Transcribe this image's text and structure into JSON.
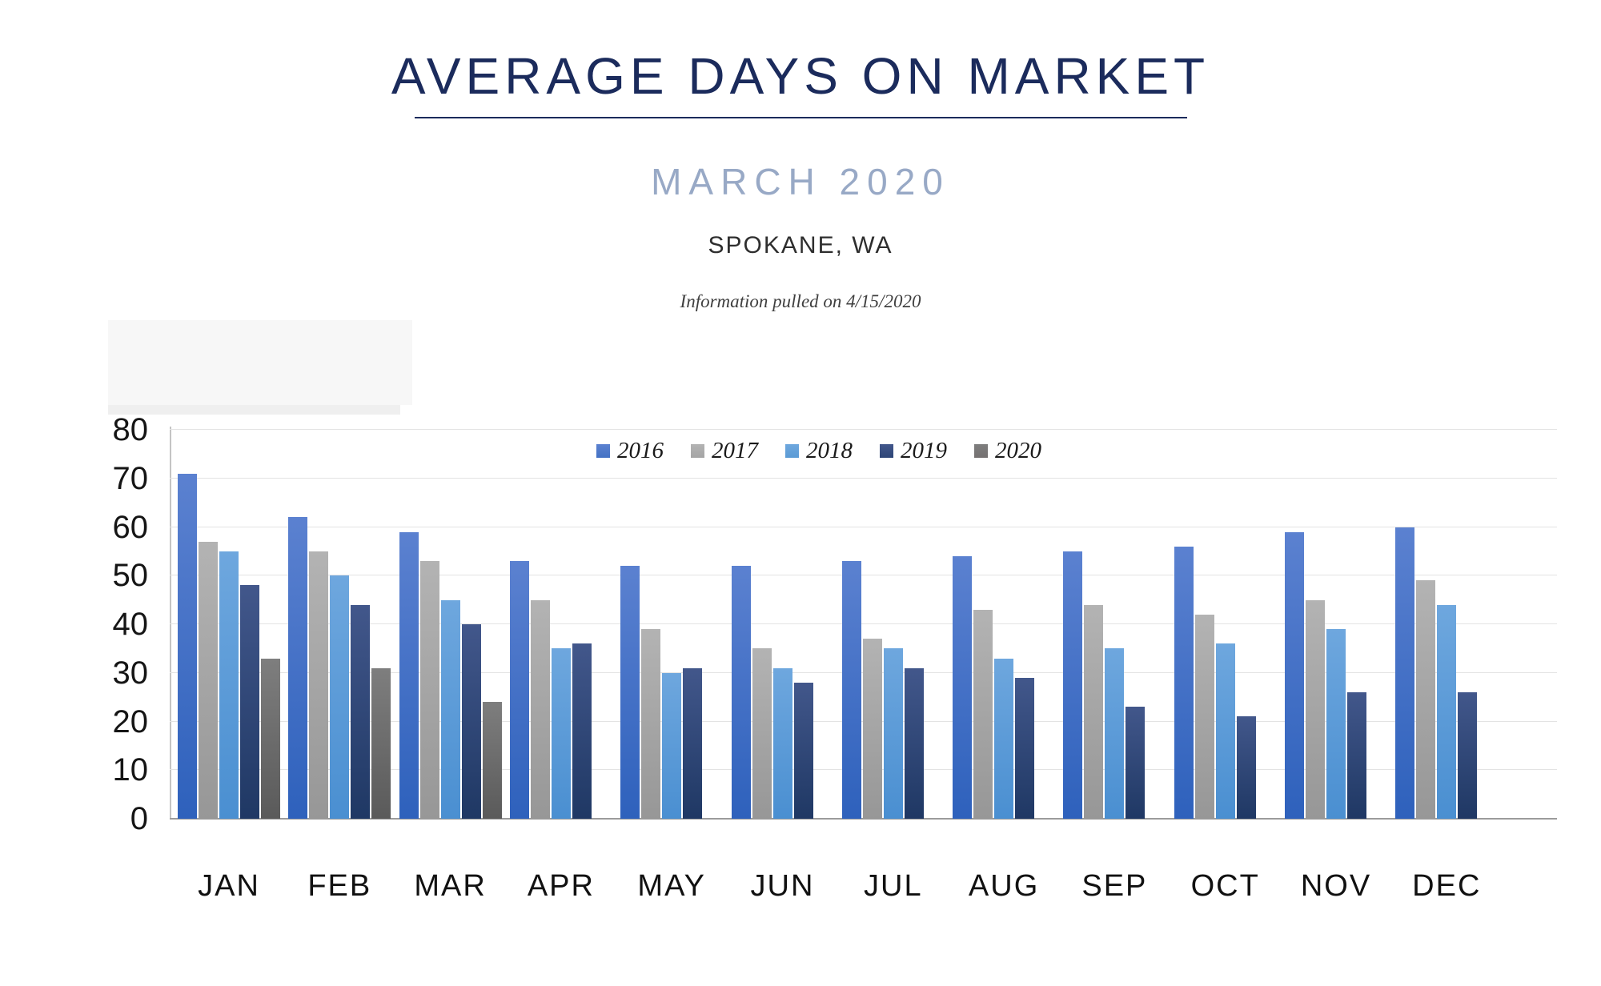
{
  "header": {
    "title": "AVERAGE DAYS ON MARKET",
    "subtitle": "MARCH 2020",
    "location": "SPOKANE, WA",
    "note": "Information pulled on 4/15/2020"
  },
  "colors": {
    "title": "#1b2b5c",
    "subtitle": "#98a9c6",
    "gridline": "#e3e3e3",
    "baseline": "#9b9b9b",
    "axis_line": "#c4c4c4"
  },
  "chart_data": {
    "type": "bar",
    "title": "AVERAGE DAYS ON MARKET",
    "subtitle": "MARCH 2020",
    "location": "SPOKANE, WA",
    "note": "Information pulled on 4/15/2020",
    "categories": [
      "JAN",
      "FEB",
      "MAR",
      "APR",
      "MAY",
      "JUN",
      "JUL",
      "AUG",
      "SEP",
      "OCT",
      "NOV",
      "DEC"
    ],
    "series": [
      {
        "name": "2016",
        "color": "#4472c4",
        "gradient_top": "#5b81d0",
        "gradient_bottom": "#2e61bc",
        "values": [
          71,
          62,
          59,
          53,
          52,
          52,
          53,
          54,
          55,
          56,
          59,
          60
        ]
      },
      {
        "name": "2017",
        "color": "#a5a5a5",
        "gradient_top": "#b3b3b3",
        "gradient_bottom": "#979797",
        "values": [
          57,
          55,
          53,
          45,
          39,
          35,
          37,
          43,
          44,
          42,
          45,
          49
        ]
      },
      {
        "name": "2018",
        "color": "#5b9bd5",
        "gradient_top": "#6ea7de",
        "gradient_bottom": "#4a8fd1",
        "values": [
          55,
          50,
          45,
          35,
          30,
          31,
          35,
          33,
          35,
          36,
          39,
          44
        ]
      },
      {
        "name": "2019",
        "color": "#2e4677",
        "gradient_top": "#42578b",
        "gradient_bottom": "#1f3864",
        "values": [
          48,
          44,
          40,
          36,
          31,
          28,
          31,
          29,
          23,
          21,
          26,
          26
        ]
      },
      {
        "name": "2020",
        "color": "#757171",
        "gradient_top": "#7e7e7e",
        "gradient_bottom": "#5a5a5a",
        "values": [
          33,
          31,
          24,
          null,
          null,
          null,
          null,
          null,
          null,
          null,
          null,
          null
        ]
      }
    ],
    "xlabel": "",
    "ylabel": "",
    "ylim": [
      0,
      80
    ],
    "ytick_interval": 10,
    "grid": true,
    "legend_position": "top-center"
  }
}
